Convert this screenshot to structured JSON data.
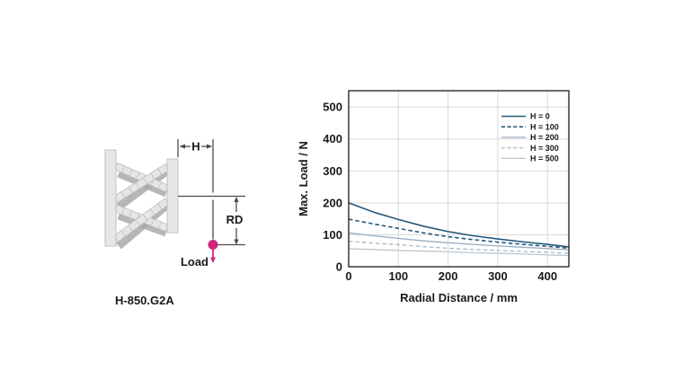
{
  "diagram": {
    "model_label": "H-850.G2A",
    "dim_h_label": "H",
    "dim_rd_label": "RD",
    "load_label": "Load",
    "accent_color": "#d02378",
    "line_color": "#4a4a4a",
    "plate_fill": "#e6e6e6",
    "plate_stroke": "#c0c0c0",
    "strut_fill": "#e6e6e6",
    "strut_stroke": "#bdbdbd",
    "shadow_fill": "#a9a9a9"
  },
  "chart_data": {
    "type": "line",
    "title": "",
    "xlabel": "Radial Distance / mm",
    "ylabel": "Max. Load / N",
    "xlim": [
      0,
      443
    ],
    "ylim": [
      0,
      551
    ],
    "xticks": [
      0,
      100,
      200,
      300,
      400
    ],
    "yticks": [
      0,
      100,
      200,
      300,
      400,
      500
    ],
    "grid": true,
    "grid_color": "#d9d9d9",
    "border_color": "#1a1a1a",
    "text_color": "#1a1a1a",
    "legend_position": "upper-right",
    "x": [
      0,
      50,
      100,
      150,
      200,
      250,
      300,
      350,
      400,
      443
    ],
    "series": [
      {
        "name": "H = 0",
        "style": "solid",
        "color": "#24587c",
        "width": 1.6,
        "values": [
          200,
          171,
          148,
          127,
          110,
          97,
          87,
          78,
          70,
          62
        ]
      },
      {
        "name": "H = 100",
        "style": "dashed",
        "color": "#24587c",
        "width": 1.6,
        "values": [
          149,
          134,
          120,
          106,
          94,
          85,
          77,
          70,
          64,
          58
        ]
      },
      {
        "name": "H = 200",
        "style": "solid",
        "color": "#98abbf",
        "width": 1.3,
        "values": [
          106,
          97,
          89,
          81,
          75,
          70,
          65,
          61,
          57,
          53
        ]
      },
      {
        "name": "H = 300",
        "style": "dashed",
        "color": "#a9b8c7",
        "width": 1.3,
        "values": [
          80,
          74,
          69,
          63,
          58,
          54,
          51,
          48,
          45,
          42
        ]
      },
      {
        "name": "H = 500",
        "style": "solid",
        "color": "#bcc5cd",
        "width": 1.3,
        "values": [
          56,
          54,
          51,
          49,
          47,
          44,
          42,
          40,
          37,
          35
        ]
      }
    ]
  }
}
